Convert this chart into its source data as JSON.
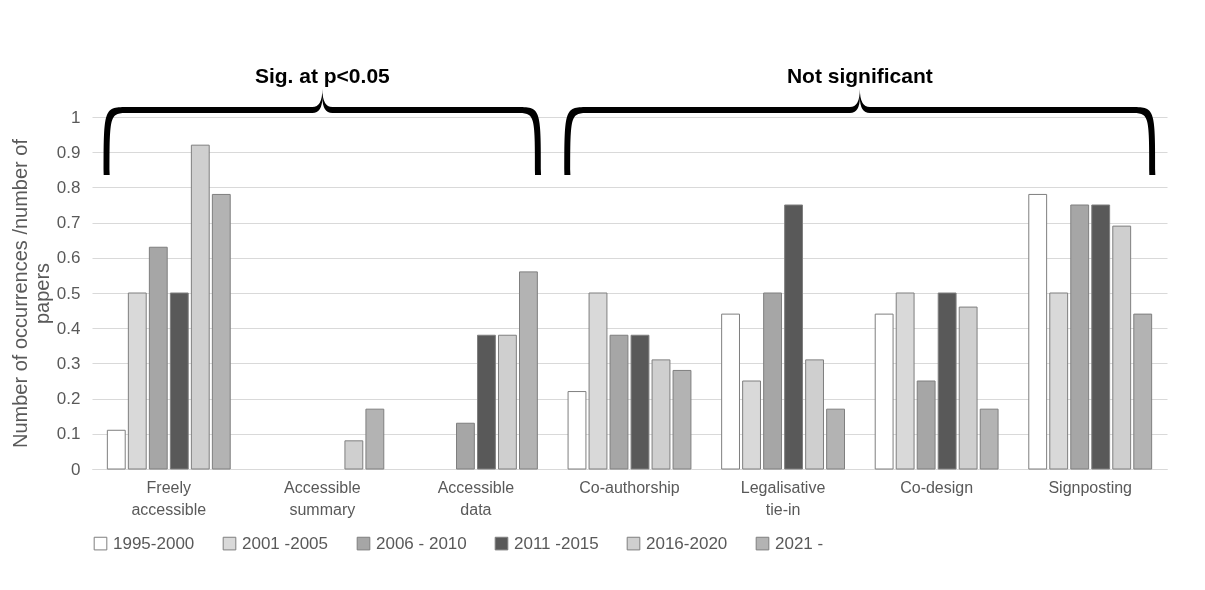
{
  "chart_data": {
    "type": "bar",
    "ylabel": "Number of occurrences /number of papers",
    "categories": [
      "Freely accessible",
      "Accessible summary",
      "Accessible data",
      "Co-authorship",
      "Legalisative tie-in",
      "Co-design",
      "Signposting"
    ],
    "series": [
      {
        "name": "1995-2000",
        "color": "#ffffff",
        "values": [
          0.11,
          0,
          0,
          0.22,
          0.44,
          0.44,
          0.78
        ]
      },
      {
        "name": "2001 -2005",
        "color": "#d9d9d9",
        "values": [
          0.5,
          0,
          0,
          0.5,
          0.25,
          0.5,
          0.5
        ]
      },
      {
        "name": "2006 - 2010",
        "color": "#a6a6a6",
        "values": [
          0.63,
          0,
          0.13,
          0.38,
          0.5,
          0.25,
          0.75
        ]
      },
      {
        "name": "2011 -2015",
        "color": "#595959",
        "values": [
          0.5,
          0,
          0.38,
          0.38,
          0.75,
          0.5,
          0.75
        ]
      },
      {
        "name": "2016-2020",
        "color": "#cfcfcf",
        "values": [
          0.92,
          0.08,
          0.38,
          0.31,
          0.31,
          0.46,
          0.69
        ]
      },
      {
        "name": "2021 -",
        "color": "#b3b3b3",
        "values": [
          0.78,
          0.17,
          0.56,
          0.28,
          0.17,
          0.17,
          0.44
        ]
      }
    ],
    "ylim": [
      0,
      1
    ],
    "yticks": [
      0,
      0.1,
      0.2,
      0.3,
      0.4,
      0.5,
      0.6,
      0.7,
      0.8,
      0.9,
      1
    ],
    "grid": "y",
    "legend": "bottom",
    "annotations": [
      "Sig. at p<0.05",
      "Not significant"
    ]
  }
}
